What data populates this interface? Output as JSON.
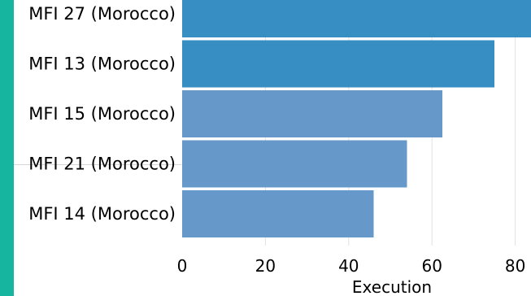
{
  "colors": {
    "accent": "#16b5a0",
    "bar_dark": "#378ec3",
    "bar_light": "#6699c9",
    "grid": "#e2e2e2"
  },
  "chart_data": {
    "type": "bar",
    "orientation": "horizontal",
    "categories": [
      "MFI 27 (Morocco)",
      "MFI 13 (Morocco)",
      "MFI 15 (Morocco)",
      "MFI 21 (Morocco)",
      "MFI 14 (Morocco)"
    ],
    "values": [
      84,
      75,
      62.5,
      54,
      46
    ],
    "highlighted": [
      true,
      true,
      false,
      false,
      false
    ],
    "xlabel": "Execution",
    "xlim": [
      0,
      84
    ],
    "xticks": [
      0,
      20,
      40,
      60,
      80
    ],
    "grid": "vertical"
  }
}
